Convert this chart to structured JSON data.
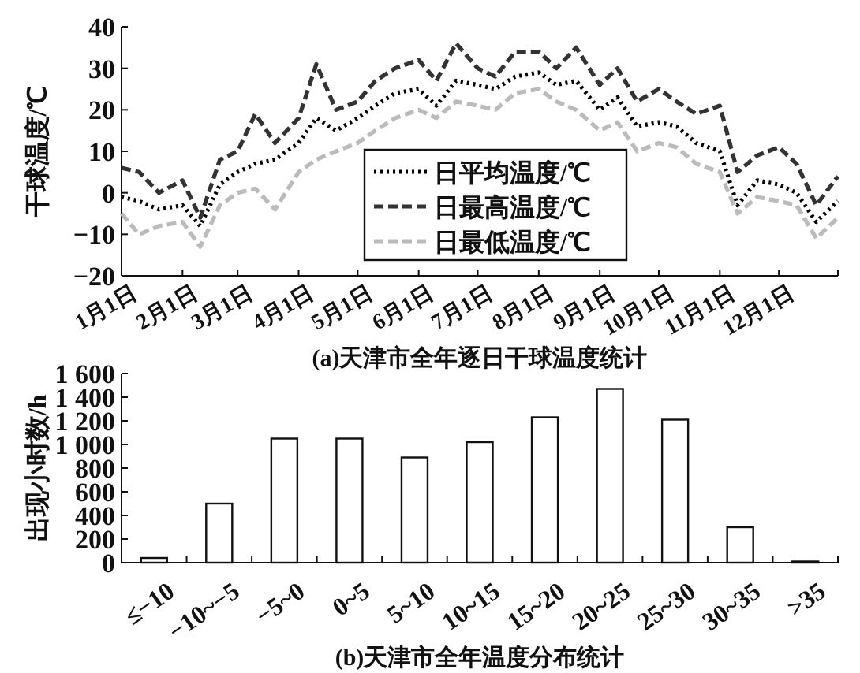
{
  "chart_data": [
    {
      "type": "line",
      "title": "(a)天津市全年逐日干球温度统计",
      "ylabel": "干球温度/℃",
      "legend": "bottom",
      "marker": "none",
      "xlim": [
        "--01-01",
        "--12-31"
      ],
      "xticks": [
        {
          "value": "--01-01",
          "label": "1月1日"
        },
        {
          "value": "--02-01",
          "label": "2月1日"
        },
        {
          "value": "--03-01",
          "label": "3月1日"
        },
        {
          "value": "--04-01",
          "label": "4月1日"
        },
        {
          "value": "--05-01",
          "label": "5月1日"
        },
        {
          "value": "--06-01",
          "label": "6月1日"
        },
        {
          "value": "--07-01",
          "label": "7月1日"
        },
        {
          "value": "--08-01",
          "label": "8月1日"
        },
        {
          "value": "--09-01",
          "label": "9月1日"
        },
        {
          "value": "--10-01",
          "label": "10月1日"
        },
        {
          "value": "--11-01",
          "label": "11月1日"
        },
        {
          "value": "--12-01",
          "label": "12月1日"
        },
        {
          "value": "--12-31",
          "label": null
        }
      ],
      "ylim": [
        -20,
        40
      ],
      "yticks": [
        {
          "value": -20,
          "label": "−20"
        },
        {
          "value": -10,
          "label": "−10"
        },
        0,
        10,
        20,
        30,
        40
      ],
      "x": [
        "--01-01",
        "--01-10",
        "--01-20",
        "--02-01",
        "--02-10",
        "--02-20",
        "--03-01",
        "--03-10",
        "--03-20",
        "--04-01",
        "--04-10",
        "--04-20",
        "--05-01",
        "--05-10",
        "--05-20",
        "--06-01",
        "--06-10",
        "--06-20",
        "--07-01",
        "--07-10",
        "--07-20",
        "--08-01",
        "--08-10",
        "--08-20",
        "--09-01",
        "--09-10",
        "--09-20",
        "--10-01",
        "--10-10",
        "--10-20",
        "--11-01",
        "--11-10",
        "--11-20",
        "--12-01",
        "--12-10",
        "--12-20",
        "--12-31"
      ],
      "series": [
        {
          "name": "日平均温度/℃",
          "color": "#000000",
          "line_style": "dotted",
          "values": [
            -1,
            -2,
            -4,
            -3,
            -8,
            2,
            5,
            7,
            8,
            12,
            18,
            15,
            18,
            21,
            24,
            25,
            21,
            27,
            26,
            25,
            28,
            29,
            26,
            27,
            20,
            23,
            16,
            17,
            16,
            12,
            10,
            -3,
            3,
            2,
            0,
            -7,
            -2
          ]
        },
        {
          "name": "日最高温度/℃",
          "color": "#333333",
          "line_style": "dashed",
          "values": [
            6,
            5,
            0,
            3,
            -6,
            8,
            10,
            19,
            12,
            18,
            31,
            20,
            22,
            27,
            30,
            32,
            27,
            36,
            30,
            28,
            34,
            34,
            30,
            35,
            26,
            30,
            22,
            25,
            22,
            19,
            21,
            5,
            9,
            11,
            7,
            -3,
            4
          ]
        },
        {
          "name": "日最低温度/℃",
          "color": "#bbbbbb",
          "line_style": "dashed",
          "values": [
            -5,
            -10,
            -8,
            -7,
            -13,
            -3,
            0,
            1,
            -4,
            5,
            8,
            10,
            12,
            15,
            18,
            20,
            18,
            22,
            21,
            20,
            24,
            25,
            22,
            20,
            15,
            17,
            10,
            12,
            11,
            7,
            5,
            -5,
            -1,
            -2,
            -3,
            -11,
            -6
          ]
        }
      ]
    },
    {
      "type": "bar",
      "title": "(b)天津市全年温度分布统计",
      "ylabel": "出现小时数/h",
      "categories": [
        "≤−10",
        "−10~−5",
        "−5~0",
        "0~5",
        "5~10",
        "10~15",
        "15~20",
        "20~25",
        "25~30",
        "30~35",
        ">35"
      ],
      "ylim": [
        0,
        1600
      ],
      "yticks": [
        0,
        200,
        400,
        600,
        800,
        {
          "value": 1000,
          "label": "1 000"
        },
        {
          "value": 1200,
          "label": "1 200"
        },
        {
          "value": 1400,
          "label": "1 400"
        },
        {
          "value": 1600,
          "label": "1 600"
        }
      ],
      "series": [
        {
          "color": "#ffffff",
          "values": [
            40,
            500,
            1050,
            1050,
            890,
            1020,
            1230,
            1470,
            1210,
            300,
            10
          ]
        }
      ]
    }
  ]
}
